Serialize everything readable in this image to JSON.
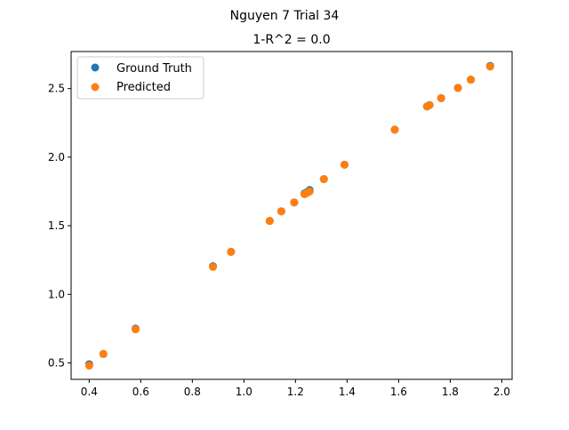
{
  "figure": {
    "suptitle": "Nguyen 7 Trial 34"
  },
  "chart_data": {
    "type": "scatter",
    "title": "1-R^2 = 0.0",
    "xlabel": "",
    "ylabel": "",
    "xlim": [
      0.33,
      2.04
    ],
    "ylim": [
      0.38,
      2.77
    ],
    "xticks": [
      "0.4",
      "0.6",
      "0.8",
      "1.0",
      "1.2",
      "1.4",
      "1.6",
      "1.8",
      "2.0"
    ],
    "yticks": [
      "0.5",
      "1.0",
      "1.5",
      "2.0",
      "2.5"
    ],
    "grid": false,
    "legend": "top-left",
    "series": [
      {
        "name": "Ground Truth",
        "color": "#1f77b4",
        "points": [
          [
            0.4,
            0.49
          ],
          [
            0.455,
            0.565
          ],
          [
            0.58,
            0.75
          ],
          [
            0.88,
            1.205
          ],
          [
            0.95,
            1.31
          ],
          [
            1.1,
            1.535
          ],
          [
            1.145,
            1.605
          ],
          [
            1.195,
            1.67
          ],
          [
            1.235,
            1.735
          ],
          [
            1.245,
            1.745
          ],
          [
            1.255,
            1.76
          ],
          [
            1.31,
            1.84
          ],
          [
            1.39,
            1.945
          ],
          [
            1.585,
            2.2
          ],
          [
            1.71,
            2.37
          ],
          [
            1.72,
            2.38
          ],
          [
            1.765,
            2.43
          ],
          [
            1.83,
            2.505
          ],
          [
            1.88,
            2.565
          ],
          [
            1.955,
            2.665
          ]
        ]
      },
      {
        "name": "Predicted",
        "color": "#ff7f0e",
        "points": [
          [
            0.4,
            0.48
          ],
          [
            0.455,
            0.565
          ],
          [
            0.58,
            0.745
          ],
          [
            0.88,
            1.2
          ],
          [
            0.95,
            1.31
          ],
          [
            1.1,
            1.535
          ],
          [
            1.145,
            1.605
          ],
          [
            1.195,
            1.67
          ],
          [
            1.235,
            1.73
          ],
          [
            1.245,
            1.74
          ],
          [
            1.255,
            1.75
          ],
          [
            1.31,
            1.84
          ],
          [
            1.39,
            1.945
          ],
          [
            1.585,
            2.2
          ],
          [
            1.71,
            2.37
          ],
          [
            1.72,
            2.38
          ],
          [
            1.765,
            2.43
          ],
          [
            1.83,
            2.505
          ],
          [
            1.88,
            2.565
          ],
          [
            1.955,
            2.66
          ]
        ]
      }
    ]
  }
}
